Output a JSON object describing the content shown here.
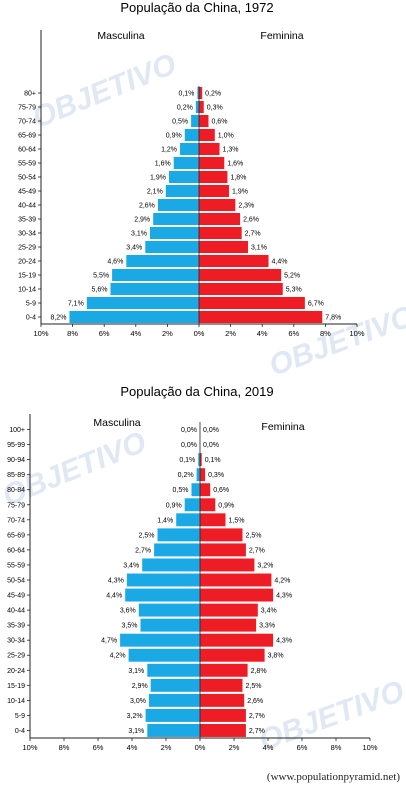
{
  "colors": {
    "male": "#1ba9e5",
    "female": "#ee1c24",
    "axis": "#222222",
    "watermark": "#dfe8f3"
  },
  "watermark": {
    "text": "OBJETIVO"
  },
  "source": "(www.populationpyramid.net)",
  "chart_data": [
    {
      "type": "bar",
      "orientation": "horizontal-population-pyramid",
      "title": "População da China, 1972",
      "categories": [
        "0-4",
        "5-9",
        "10-14",
        "15-19",
        "20-24",
        "25-29",
        "30-34",
        "35-39",
        "40-44",
        "45-49",
        "50-54",
        "55-59",
        "60-64",
        "65-69",
        "70-74",
        "75-79",
        "80+"
      ],
      "category_labels": [
        "0-4",
        "5-9",
        "10-14",
        "15-19",
        "20-24",
        "25-29",
        "30-34",
        "35-39",
        "40-44",
        "45-49",
        "50-54",
        "55-59",
        "60-64",
        "65-69",
        "70-74",
        "75-79",
        "80+"
      ],
      "series": [
        {
          "name": "Masculina",
          "values": [
            8.2,
            7.1,
            5.6,
            5.5,
            4.6,
            3.4,
            3.1,
            2.9,
            2.6,
            2.1,
            1.9,
            1.6,
            1.2,
            0.9,
            0.5,
            0.2,
            0.1
          ],
          "labels": [
            "8,2%",
            "7,1%",
            "5,6%",
            "5,5%",
            "4,6%",
            "3,4%",
            "3,1%",
            "2,9%",
            "2,6%",
            "2,1%",
            "1,9%",
            "1,6%",
            "1,2%",
            "0,9%",
            "0,5%",
            "0,2%",
            "0,1%"
          ]
        },
        {
          "name": "Feminina",
          "values": [
            7.8,
            6.7,
            5.3,
            5.2,
            4.4,
            3.1,
            2.7,
            2.6,
            2.3,
            1.9,
            1.8,
            1.6,
            1.3,
            1.0,
            0.6,
            0.3,
            0.2
          ],
          "labels": [
            "7,8%",
            "6,7%",
            "5,3%",
            "5,2%",
            "4,4%",
            "3,1%",
            "2,7%",
            "2,6%",
            "2,3%",
            "1,9%",
            "1,8%",
            "1,6%",
            "1,3%",
            "1,0%",
            "0,6%",
            "0,3%",
            "0,2%"
          ]
        }
      ],
      "xlim": [
        -10,
        10
      ],
      "xticks": [
        "10%",
        "8%",
        "6%",
        "4%",
        "2%",
        "0%",
        "2%",
        "4%",
        "6%",
        "8%",
        "10%"
      ],
      "legend": "top"
    },
    {
      "type": "bar",
      "orientation": "horizontal-population-pyramid",
      "title": "População da China, 2019",
      "categories": [
        "0-4",
        "5-9",
        "10-14",
        "15-19",
        "20-24",
        "25-29",
        "30-34",
        "35-39",
        "40-44",
        "45-49",
        "50-54",
        "55-59",
        "60-64",
        "65-69",
        "70-74",
        "75-79",
        "80-84",
        "85-89",
        "90-94",
        "95-99",
        "100+"
      ],
      "category_labels": [
        "0-4",
        "5-9",
        "10-14",
        "15-19",
        "20-24",
        "25-29",
        "30-34",
        "35-39",
        "40-44",
        "45-49",
        "50-54",
        "55-59",
        "60-64",
        "65-69",
        "70-74",
        "75-79",
        "80-84",
        "85-89",
        "90-94",
        "95-99",
        "100+"
      ],
      "series": [
        {
          "name": "Masculina",
          "values": [
            3.1,
            3.2,
            3.0,
            2.9,
            3.1,
            4.2,
            4.7,
            3.5,
            3.6,
            4.4,
            4.3,
            3.4,
            2.7,
            2.5,
            1.4,
            0.9,
            0.5,
            0.2,
            0.1,
            0.0,
            0.0
          ],
          "labels": [
            "3,1%",
            "3,2%",
            "3,0%",
            "2,9%",
            "3,1%",
            "4,2%",
            "4,7%",
            "3,5%",
            "3,6%",
            "4,4%",
            "4,3%",
            "3,4%",
            "2,7%",
            "2,5%",
            "1,4%",
            "0,9%",
            "0,5%",
            "0,2%",
            "0,1%",
            "0,0%",
            "0,0%"
          ]
        },
        {
          "name": "Feminina",
          "values": [
            2.7,
            2.7,
            2.6,
            2.5,
            2.8,
            3.8,
            4.3,
            3.3,
            3.4,
            4.3,
            4.2,
            3.2,
            2.7,
            2.5,
            1.5,
            0.9,
            0.6,
            0.3,
            0.1,
            0.0,
            0.0
          ],
          "labels": [
            "2,7%",
            "2,7%",
            "2,6%",
            "2,5%",
            "2,8%",
            "3,8%",
            "4,3%",
            "3,3%",
            "3,4%",
            "4,3%",
            "4,2%",
            "3,2%",
            "2,7%",
            "2,5%",
            "1,5%",
            "0,9%",
            "0,6%",
            "0,3%",
            "0,1%",
            "0,0%",
            "0,0%"
          ]
        }
      ],
      "xlim": [
        -10,
        10
      ],
      "xticks": [
        "10%",
        "8%",
        "6%",
        "4%",
        "2%",
        "0%",
        "2%",
        "4%",
        "6%",
        "8%",
        "10%"
      ],
      "legend": "top"
    }
  ]
}
